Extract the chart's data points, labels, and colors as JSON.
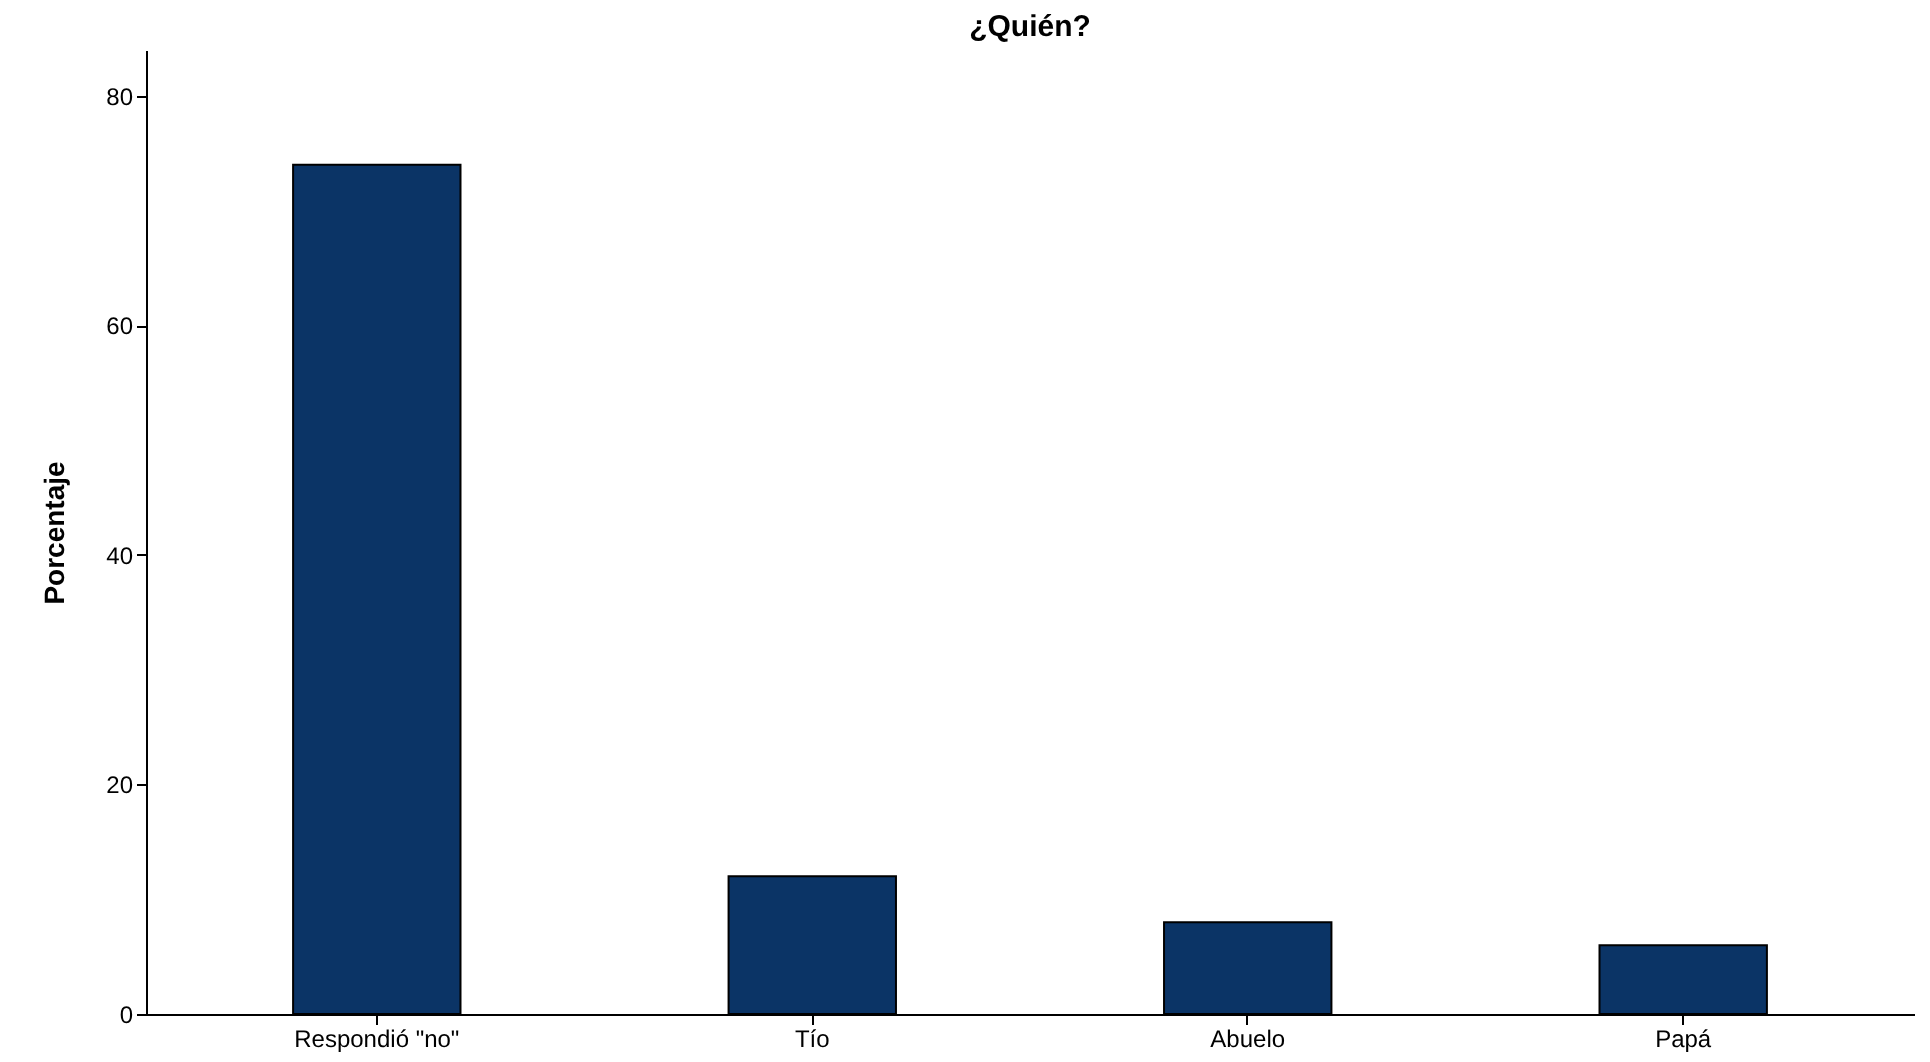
{
  "chart_data": {
    "type": "bar",
    "title": "¿Quién?",
    "ylabel": "Porcentaje",
    "categories": [
      "Respondió \"no\"",
      "Tío",
      "Abuelo",
      "Papá"
    ],
    "values": [
      74,
      12,
      8,
      6
    ],
    "color": "#0b3466",
    "ylim": [
      0,
      84
    ],
    "yticks": [
      0,
      20,
      40,
      60,
      80
    ],
    "grid": false
  }
}
